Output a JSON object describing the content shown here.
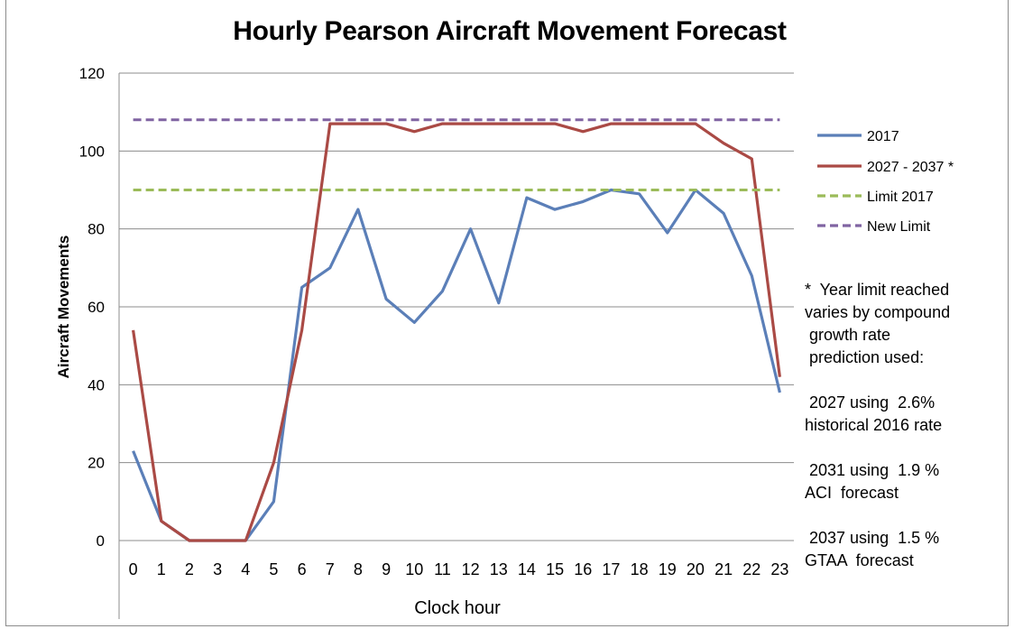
{
  "chart_data": {
    "type": "line",
    "title": "Hourly Pearson Aircraft Movement Forecast",
    "xlabel": "Clock hour",
    "ylabel": "Aircraft Movements",
    "categories": [
      "0",
      "1",
      "2",
      "3",
      "4",
      "5",
      "6",
      "7",
      "8",
      "9",
      "10",
      "11",
      "12",
      "13",
      "14",
      "15",
      "16",
      "17",
      "18",
      "19",
      "20",
      "21",
      "22",
      "23"
    ],
    "ylim": [
      0,
      120
    ],
    "yticks": [
      "0",
      "20",
      "40",
      "60",
      "80",
      "100",
      "120"
    ],
    "grid": "horizontal",
    "legend_position": "right",
    "series": [
      {
        "name": "2017",
        "color": "#5b7fb8",
        "dash": false,
        "values": [
          23,
          5,
          0,
          0,
          0,
          10,
          65,
          70,
          85,
          62,
          56,
          64,
          80,
          61,
          88,
          85,
          87,
          90,
          89,
          79,
          90,
          84,
          68,
          38
        ]
      },
      {
        "name": "2027 - 2037 *",
        "color": "#aa4a45",
        "dash": false,
        "values": [
          54,
          5,
          0,
          0,
          0,
          20,
          54,
          107,
          107,
          107,
          105,
          107,
          107,
          107,
          107,
          107,
          105,
          107,
          107,
          107,
          107,
          102,
          98,
          42
        ]
      },
      {
        "name": "Limit 2017",
        "color": "#9bbb59",
        "dash": true,
        "values": [
          90,
          90,
          90,
          90,
          90,
          90,
          90,
          90,
          90,
          90,
          90,
          90,
          90,
          90,
          90,
          90,
          90,
          90,
          90,
          90,
          90,
          90,
          90,
          90
        ]
      },
      {
        "name": "New Limit",
        "color": "#8064a2",
        "dash": true,
        "values": [
          108,
          108,
          108,
          108,
          108,
          108,
          108,
          108,
          108,
          108,
          108,
          108,
          108,
          108,
          108,
          108,
          108,
          108,
          108,
          108,
          108,
          108,
          108,
          108
        ]
      }
    ],
    "annotation": [
      "*  Year limit reached",
      "varies by compound",
      " growth rate",
      " prediction used:",
      "",
      " 2027 using  2.6%",
      "historical 2016 rate",
      "",
      " 2031 using  1.9 %",
      "ACI  forecast",
      "",
      " 2037 using  1.5 %",
      "GTAA  forecast"
    ]
  }
}
